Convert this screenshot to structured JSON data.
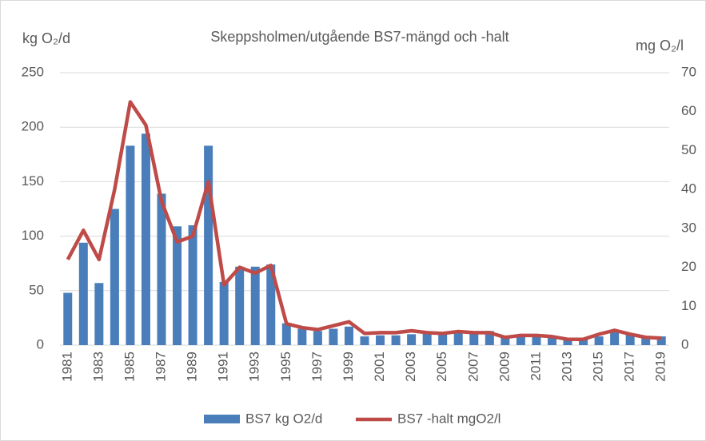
{
  "chart_data": {
    "type": "bar_line",
    "title": "Skeppsholmen/utgående BS7-mängd och -halt",
    "y_label": "kg O₂/d",
    "y2_label": "mg O₂/l",
    "categories": [
      "1981",
      null,
      "1983",
      null,
      "1985",
      null,
      "1987",
      null,
      "1989",
      null,
      "1991",
      null,
      "1993",
      null,
      "1995",
      null,
      "1997",
      null,
      "1999",
      null,
      "2001",
      null,
      "2003",
      null,
      "2005",
      null,
      "2007",
      null,
      "2009",
      null,
      "2011",
      null,
      "2013",
      null,
      "2015",
      null,
      "2017",
      null,
      "2019"
    ],
    "series": [
      {
        "name": "BS7 kg O2/d",
        "type": "bar",
        "color": "#4a7ebb",
        "values": [
          48,
          94,
          57,
          125,
          183,
          194,
          139,
          109,
          110,
          183,
          58,
          72,
          72,
          74,
          20,
          15,
          13,
          15,
          17,
          8,
          9,
          9,
          10,
          11,
          10,
          11,
          12,
          13,
          7,
          9,
          9,
          8,
          6,
          6,
          8,
          12,
          10,
          8,
          8
        ]
      },
      {
        "name": "BS7 -halt mgO2/l",
        "type": "line",
        "axis": "y2",
        "color": "#be4b48",
        "values": [
          22,
          29.5,
          22,
          40,
          62.5,
          56.5,
          37,
          26.5,
          28,
          42,
          15.5,
          20,
          18.5,
          20.5,
          5.5,
          4.5,
          4,
          5,
          6,
          3,
          3.2,
          3.2,
          3.7,
          3.2,
          3,
          3.5,
          3.2,
          3.2,
          2,
          2.5,
          2.5,
          2.2,
          1.5,
          1.5,
          2.8,
          3.8,
          2.8,
          2,
          1.8
        ]
      }
    ],
    "ylim": [
      0,
      250
    ],
    "yticks": [
      0,
      50,
      100,
      150,
      200,
      250
    ],
    "y2lim": [
      0,
      70
    ],
    "y2ticks": [
      0,
      10,
      20,
      30,
      40,
      50,
      60,
      70
    ],
    "grid": true,
    "legend": "bottom"
  }
}
